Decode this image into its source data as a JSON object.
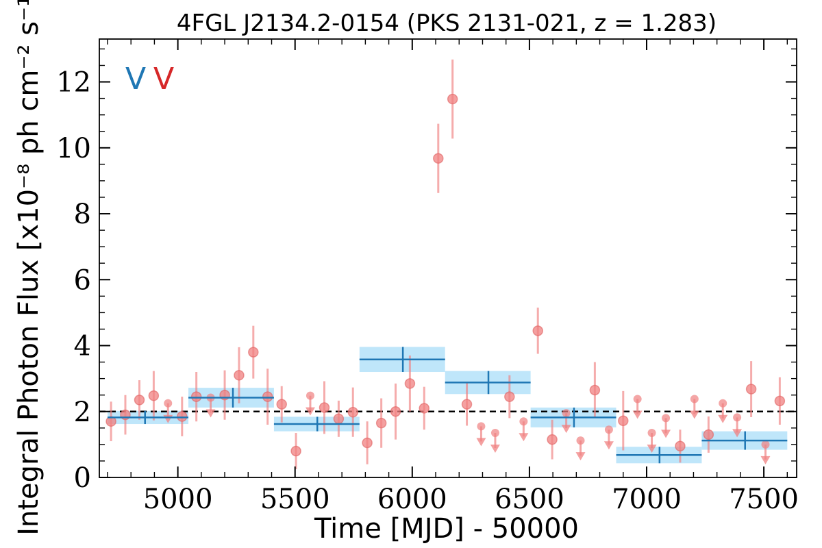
{
  "chart_data": {
    "type": "scatter",
    "title": "4FGL J2134.2-0154 (PKS 2131-021, z = 1.283)",
    "xlabel": "Time [MJD] - 50000",
    "ylabel": "Integral Photon Flux [x10⁻⁸ ph cm⁻² s⁻¹]",
    "xlim": [
      4665,
      7640
    ],
    "ylim": [
      0,
      13.3
    ],
    "x_ticks": [
      5000,
      5500,
      6000,
      6500,
      7000,
      7500
    ],
    "y_ticks": [
      0,
      2,
      4,
      6,
      8,
      10,
      12
    ],
    "x_tick_labels": [
      "5000",
      "5500",
      "6000",
      "6500",
      "7000",
      "7500"
    ],
    "y_tick_labels": [
      "0",
      "2",
      "4",
      "6",
      "8",
      "10",
      "12"
    ],
    "average_flux": 2.0,
    "markers": [
      {
        "text": "V",
        "color": "#1f77b4"
      },
      {
        "text": "V",
        "color": "#d62728"
      }
    ],
    "series": [
      {
        "kind": "bins",
        "color": "#1f77b4",
        "band_color": "#bfe6fa",
        "points": [
          {
            "x_start": 4700,
            "x_end": 5045,
            "x": 4860,
            "y": 1.82,
            "err": 0.2
          },
          {
            "x_start": 5045,
            "x_end": 5410,
            "x": 5235,
            "y": 2.42,
            "err": 0.3
          },
          {
            "x_start": 5410,
            "x_end": 5775,
            "x": 5595,
            "y": 1.62,
            "err": 0.22
          },
          {
            "x_start": 5775,
            "x_end": 6140,
            "x": 5960,
            "y": 3.58,
            "err": 0.38
          },
          {
            "x_start": 6140,
            "x_end": 6505,
            "x": 6325,
            "y": 2.88,
            "err": 0.35
          },
          {
            "x_start": 6505,
            "x_end": 6870,
            "x": 6690,
            "y": 1.82,
            "err": 0.3
          },
          {
            "x_start": 6870,
            "x_end": 7235,
            "x": 7055,
            "y": 0.68,
            "err": 0.25
          },
          {
            "x_start": 7235,
            "x_end": 7600,
            "x": 7420,
            "y": 1.12,
            "err": 0.28
          }
        ]
      },
      {
        "kind": "detections",
        "color": "#f08080",
        "points": [
          {
            "x": 4715,
            "y": 1.7,
            "err": 0.6
          },
          {
            "x": 4776,
            "y": 1.9,
            "err": 0.6
          },
          {
            "x": 4836,
            "y": 2.35,
            "err": 0.6
          },
          {
            "x": 4897,
            "y": 2.48,
            "err": 0.75
          },
          {
            "x": 5018,
            "y": 1.85,
            "err": 0.6
          },
          {
            "x": 5079,
            "y": 2.45,
            "err": 0.75
          },
          {
            "x": 5200,
            "y": 2.5,
            "err": 0.75
          },
          {
            "x": 5261,
            "y": 3.1,
            "err": 0.85
          },
          {
            "x": 5322,
            "y": 3.8,
            "err": 0.8
          },
          {
            "x": 5383,
            "y": 2.45,
            "err": 0.85
          },
          {
            "x": 5443,
            "y": 2.22,
            "err": 0.55
          },
          {
            "x": 5504,
            "y": 0.8,
            "err": 0.55
          },
          {
            "x": 5625,
            "y": 2.12,
            "err": 0.8
          },
          {
            "x": 5686,
            "y": 1.78,
            "err": 0.55
          },
          {
            "x": 5747,
            "y": 1.98,
            "err": 0.75
          },
          {
            "x": 5808,
            "y": 1.05,
            "err": 0.65
          },
          {
            "x": 5868,
            "y": 1.65,
            "err": 0.75
          },
          {
            "x": 5929,
            "y": 2.0,
            "err": 0.85
          },
          {
            "x": 5990,
            "y": 2.85,
            "err": 0.85
          },
          {
            "x": 6051,
            "y": 2.1,
            "err": 0.65
          },
          {
            "x": 6111,
            "y": 9.68,
            "err": 1.05
          },
          {
            "x": 6172,
            "y": 11.48,
            "err": 1.2
          },
          {
            "x": 6233,
            "y": 2.22,
            "err": 0.65
          },
          {
            "x": 6415,
            "y": 2.45,
            "err": 0.65
          },
          {
            "x": 6536,
            "y": 4.45,
            "err": 0.7
          },
          {
            "x": 6597,
            "y": 1.15,
            "err": 0.6
          },
          {
            "x": 6779,
            "y": 2.65,
            "err": 0.85
          },
          {
            "x": 6900,
            "y": 1.72,
            "err": 0.9
          },
          {
            "x": 7143,
            "y": 0.95,
            "err": 0.5
          },
          {
            "x": 7264,
            "y": 1.3,
            "err": 0.55
          },
          {
            "x": 7446,
            "y": 2.68,
            "err": 0.85
          },
          {
            "x": 7568,
            "y": 2.32,
            "err": 0.72
          }
        ]
      },
      {
        "kind": "upper_limits",
        "color": "#f08080",
        "points": [
          {
            "x": 4958,
            "y": 2.25
          },
          {
            "x": 5140,
            "y": 2.42
          },
          {
            "x": 5565,
            "y": 2.48
          },
          {
            "x": 6294,
            "y": 1.55
          },
          {
            "x": 6354,
            "y": 1.35
          },
          {
            "x": 6475,
            "y": 1.7
          },
          {
            "x": 6657,
            "y": 1.95
          },
          {
            "x": 6718,
            "y": 1.12
          },
          {
            "x": 6839,
            "y": 1.45
          },
          {
            "x": 6961,
            "y": 2.38
          },
          {
            "x": 7022,
            "y": 1.35
          },
          {
            "x": 7082,
            "y": 1.8
          },
          {
            "x": 7204,
            "y": 2.38
          },
          {
            "x": 7325,
            "y": 2.25
          },
          {
            "x": 7386,
            "y": 1.82
          },
          {
            "x": 7507,
            "y": 1.0
          }
        ]
      }
    ]
  }
}
